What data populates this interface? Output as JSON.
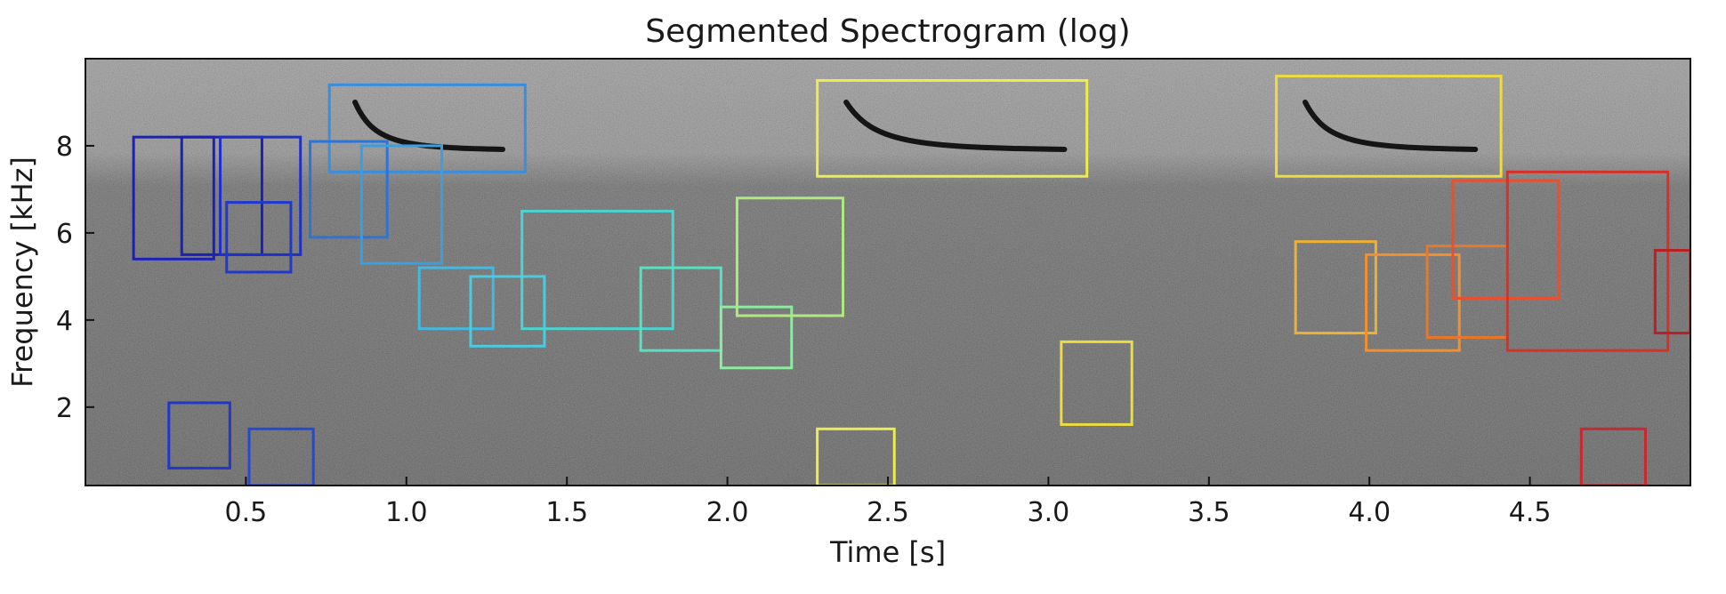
{
  "chart_data": {
    "type": "spectrogram",
    "title": "Segmented Spectrogram (log)",
    "xlabel": "Time  [s]",
    "ylabel": "Frequency  [kHz]",
    "xlim": [
      0,
      5.0
    ],
    "ylim": [
      0.2,
      10.0
    ],
    "x_ticks": [
      0.5,
      1.0,
      1.5,
      2.0,
      2.5,
      3.0,
      3.5,
      4.0,
      4.5
    ],
    "x_tick_labels": [
      "0.5",
      "1.0",
      "1.5",
      "2.0",
      "2.5",
      "3.0",
      "3.5",
      "4.0",
      "4.5"
    ],
    "y_ticks": [
      2,
      4,
      6,
      8
    ],
    "y_tick_labels": [
      "2",
      "4",
      "6",
      "8"
    ],
    "colormap": "gray",
    "grid": false,
    "segments": [
      {
        "t0": 0.15,
        "t1": 0.4,
        "f0": 5.4,
        "f1": 8.2,
        "color": "#1a22b8"
      },
      {
        "t0": 0.3,
        "t1": 0.55,
        "f0": 5.5,
        "f1": 8.2,
        "color": "#1a22b8"
      },
      {
        "t0": 0.42,
        "t1": 0.67,
        "f0": 5.5,
        "f1": 8.2,
        "color": "#1e30c8"
      },
      {
        "t0": 0.44,
        "t1": 0.64,
        "f0": 5.1,
        "f1": 6.7,
        "color": "#2038d0"
      },
      {
        "t0": 0.26,
        "t1": 0.45,
        "f0": 0.6,
        "f1": 2.1,
        "color": "#2236c8"
      },
      {
        "t0": 0.51,
        "t1": 0.71,
        "f0": 0.2,
        "f1": 1.5,
        "color": "#2448d8"
      },
      {
        "t0": 0.76,
        "t1": 1.37,
        "f0": 7.4,
        "f1": 9.4,
        "color": "#3a8edc"
      },
      {
        "t0": 0.7,
        "t1": 0.94,
        "f0": 5.9,
        "f1": 8.1,
        "color": "#2c74d8"
      },
      {
        "t0": 0.86,
        "t1": 1.11,
        "f0": 5.3,
        "f1": 8.0,
        "color": "#3a9ee0"
      },
      {
        "t0": 1.04,
        "t1": 1.27,
        "f0": 3.8,
        "f1": 5.2,
        "color": "#44b8e0"
      },
      {
        "t0": 1.2,
        "t1": 1.43,
        "f0": 3.4,
        "f1": 5.0,
        "color": "#48cce0"
      },
      {
        "t0": 1.36,
        "t1": 1.83,
        "f0": 3.8,
        "f1": 6.5,
        "color": "#4ad4d0"
      },
      {
        "t0": 1.73,
        "t1": 1.98,
        "f0": 3.3,
        "f1": 5.2,
        "color": "#58e0c0"
      },
      {
        "t0": 1.98,
        "t1": 2.2,
        "f0": 2.9,
        "f1": 4.3,
        "color": "#8eeaa0"
      },
      {
        "t0": 2.03,
        "t1": 2.36,
        "f0": 4.1,
        "f1": 6.8,
        "color": "#b0e880"
      },
      {
        "t0": 2.28,
        "t1": 3.12,
        "f0": 7.3,
        "f1": 9.5,
        "color": "#ecec50"
      },
      {
        "t0": 2.28,
        "t1": 2.52,
        "f0": 0.2,
        "f1": 1.5,
        "color": "#ecec50"
      },
      {
        "t0": 3.04,
        "t1": 3.26,
        "f0": 1.6,
        "f1": 3.5,
        "color": "#ecdc40"
      },
      {
        "t0": 3.71,
        "t1": 4.41,
        "f0": 7.3,
        "f1": 9.6,
        "color": "#ecdc40"
      },
      {
        "t0": 3.77,
        "t1": 4.02,
        "f0": 3.7,
        "f1": 5.8,
        "color": "#f0b030"
      },
      {
        "t0": 3.99,
        "t1": 4.28,
        "f0": 3.3,
        "f1": 5.5,
        "color": "#f09030"
      },
      {
        "t0": 4.18,
        "t1": 4.43,
        "f0": 3.6,
        "f1": 5.7,
        "color": "#e87828"
      },
      {
        "t0": 4.26,
        "t1": 4.59,
        "f0": 4.5,
        "f1": 7.2,
        "color": "#e85030"
      },
      {
        "t0": 4.43,
        "t1": 4.93,
        "f0": 3.3,
        "f1": 7.4,
        "color": "#d83028"
      },
      {
        "t0": 4.66,
        "t1": 4.86,
        "f0": 0.2,
        "f1": 1.5,
        "color": "#c82830"
      },
      {
        "t0": 4.89,
        "t1": 5.0,
        "f0": 3.7,
        "f1": 5.6,
        "color": "#b82028"
      }
    ]
  }
}
